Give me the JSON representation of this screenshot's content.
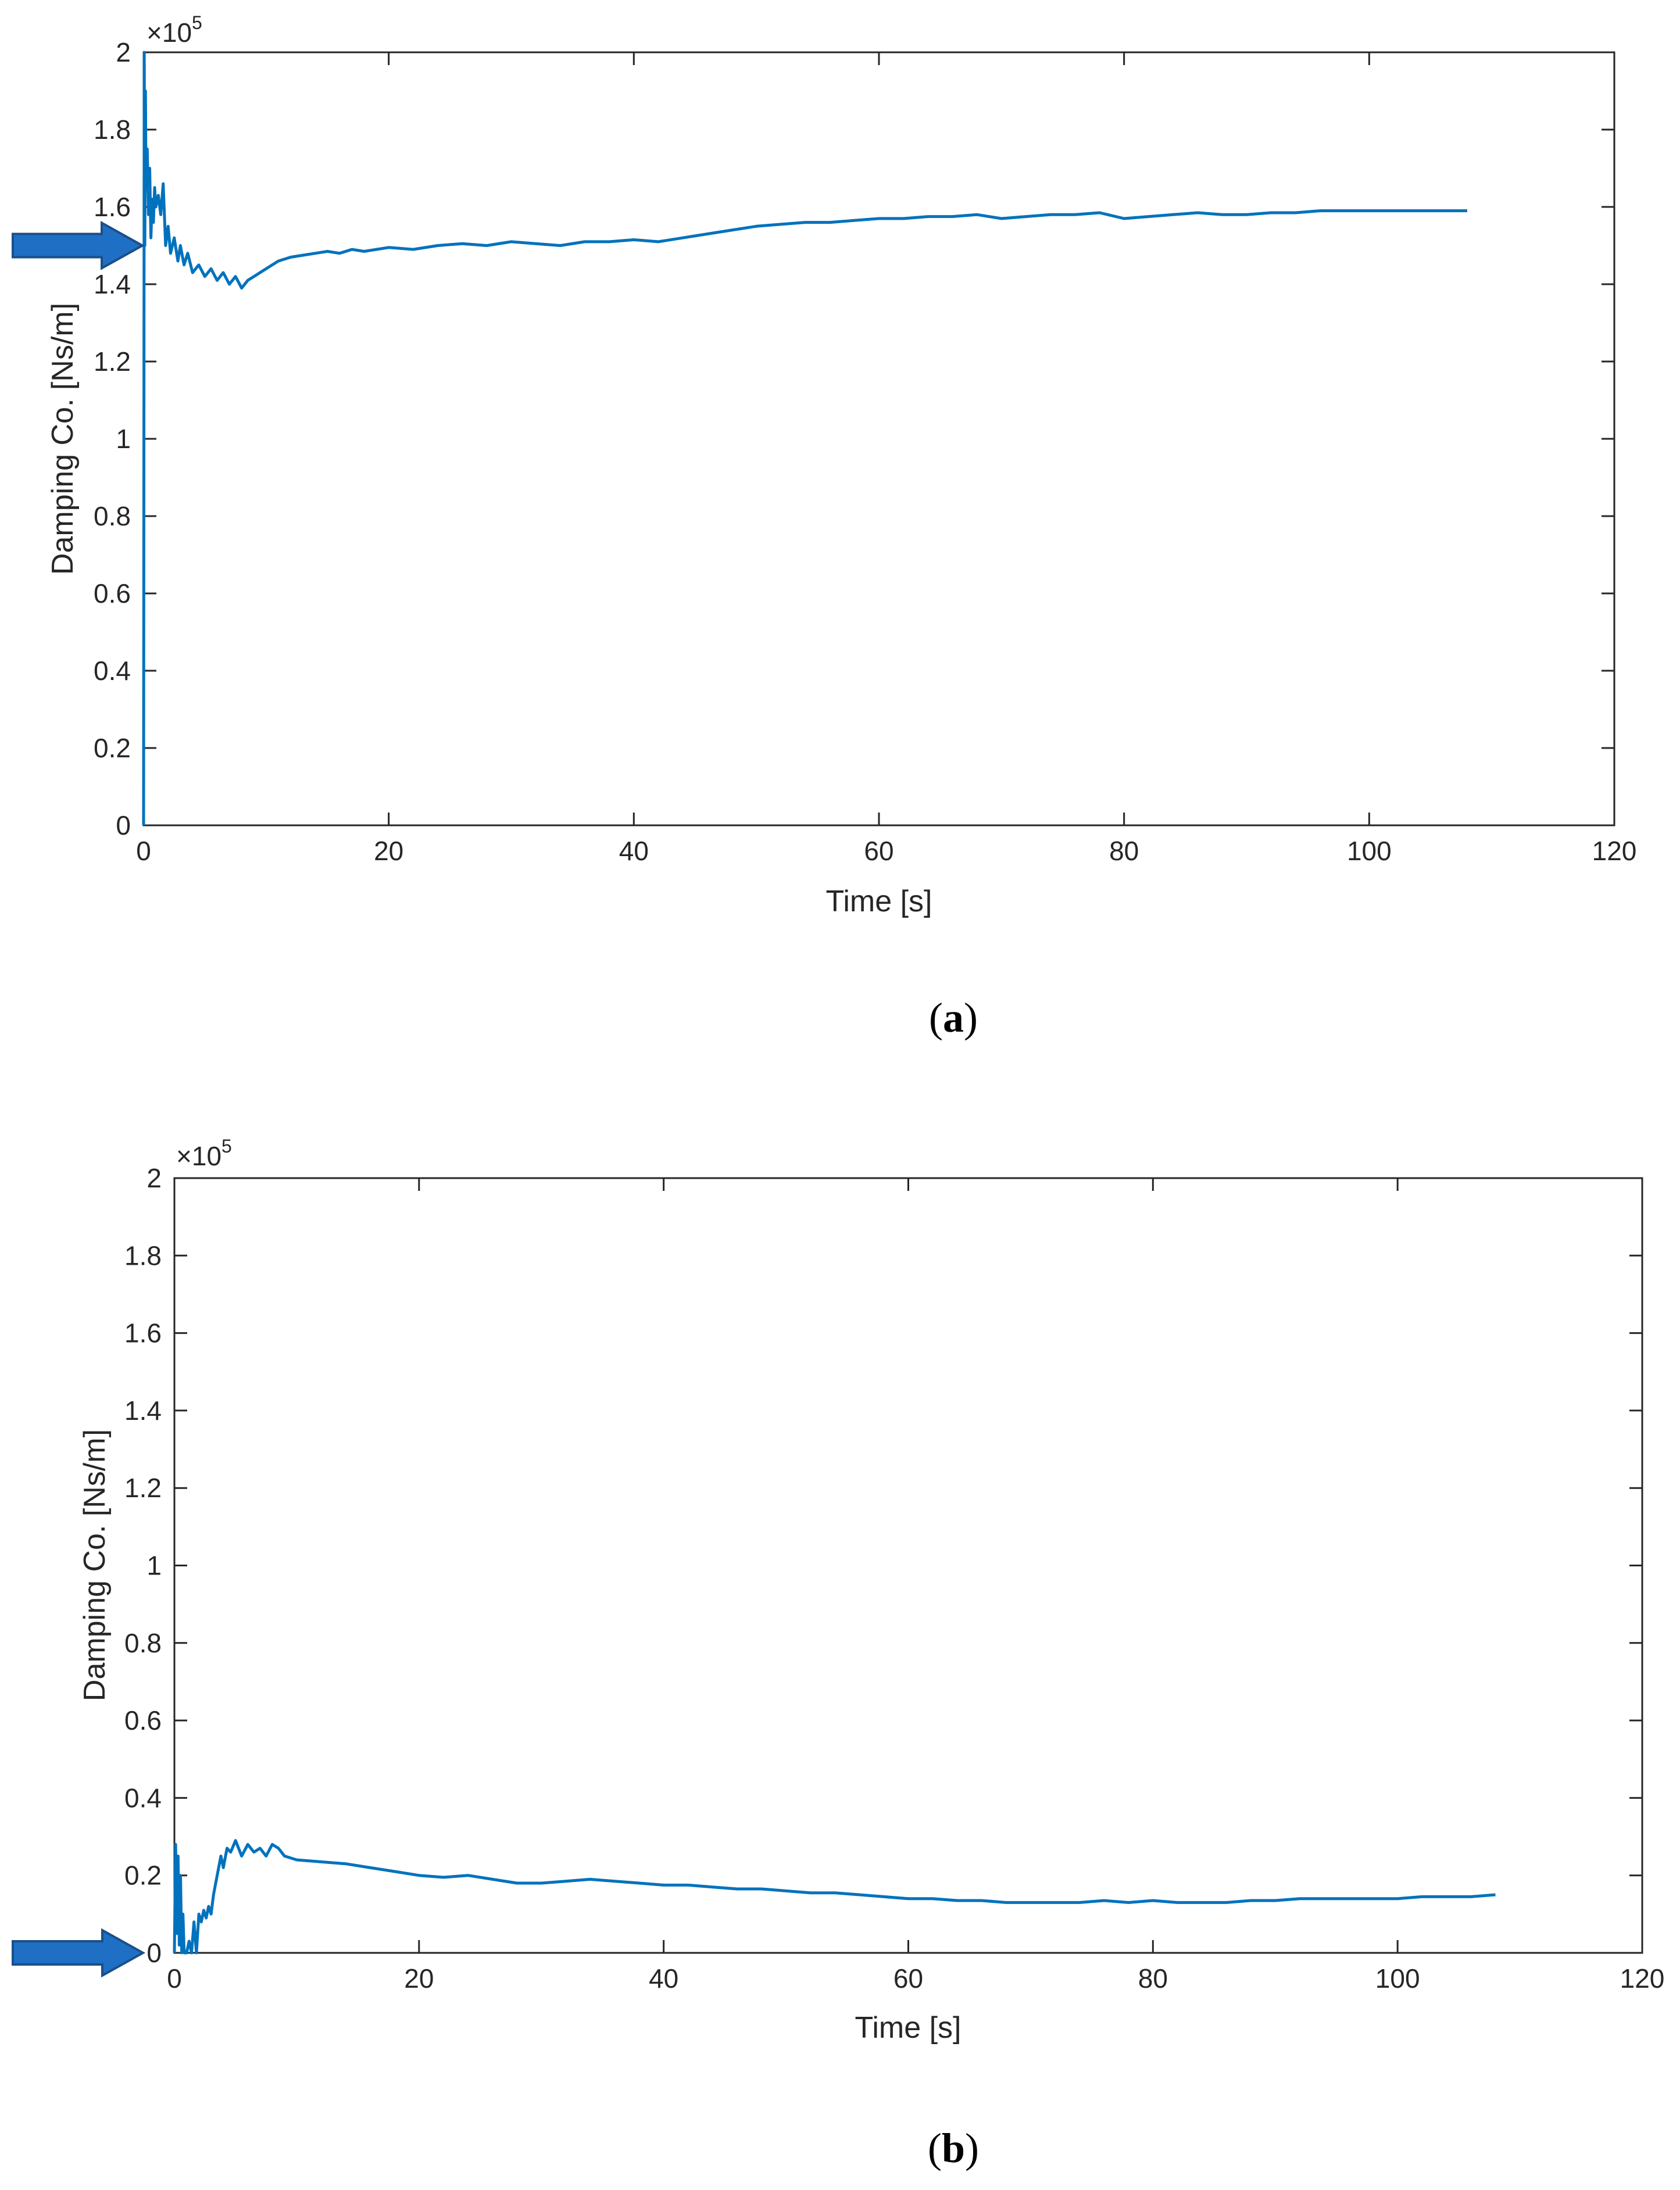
{
  "colors": {
    "line": "#0072BD",
    "axis": "#262626",
    "arrow_fill": "#1F6FC4",
    "arrow_edge": "#1A4F8A"
  },
  "chart_data": [
    {
      "type": "line",
      "caption": "(a)",
      "caption_letter": "a",
      "xlabel": "Time [s]",
      "ylabel": "Damping Co. [Ns/m]",
      "y_exponent_label": "×10",
      "y_exponent_power": "5",
      "xlim": [
        0,
        120
      ],
      "ylim": [
        0,
        200000
      ],
      "xticks": [
        0,
        20,
        40,
        60,
        80,
        100,
        120
      ],
      "xtick_labels": [
        "0",
        "20",
        "40",
        "60",
        "80",
        "100",
        "120"
      ],
      "yticks": [
        0,
        20000,
        40000,
        60000,
        80000,
        100000,
        120000,
        140000,
        160000,
        180000,
        200000
      ],
      "ytick_labels": [
        "0",
        "0.2",
        "0.4",
        "0.6",
        "0.8",
        "1",
        "1.2",
        "1.4",
        "1.6",
        "1.8",
        "2"
      ],
      "grid": false,
      "arrow_marker_y": 150000,
      "series": [
        {
          "x": [
            0,
            0.05,
            0.1,
            0.15,
            0.2,
            0.3,
            0.4,
            0.5,
            0.6,
            0.7,
            0.8,
            0.9,
            1.0,
            1.2,
            1.4,
            1.6,
            1.8,
            2.0,
            2.2,
            2.5,
            2.8,
            3.0,
            3.3,
            3.6,
            4.0,
            4.5,
            5.0,
            5.5,
            6.0,
            6.5,
            7.0,
            7.5,
            8.0,
            8.5,
            9.0,
            10,
            11,
            12,
            13,
            14,
            15,
            16,
            17,
            18,
            19,
            20,
            22,
            24,
            26,
            28,
            30,
            32,
            34,
            36,
            38,
            40,
            42,
            44,
            46,
            48,
            50,
            52,
            54,
            56,
            58,
            60,
            62,
            64,
            66,
            68,
            70,
            72,
            74,
            76,
            78,
            80,
            82,
            84,
            86,
            88,
            90,
            92,
            94,
            96,
            98,
            100,
            102,
            104,
            106,
            108
          ],
          "y": [
            0,
            200000,
            150000,
            190000,
            165000,
            175000,
            158000,
            170000,
            152000,
            162000,
            156000,
            165000,
            160000,
            163000,
            158000,
            166000,
            150000,
            155000,
            148000,
            152000,
            146000,
            150000,
            145000,
            148000,
            143000,
            145000,
            142000,
            144000,
            141000,
            143000,
            140000,
            142000,
            139000,
            141000,
            142000,
            144000,
            146000,
            147000,
            147500,
            148000,
            148500,
            148000,
            149000,
            148500,
            149000,
            149500,
            149000,
            150000,
            150500,
            150000,
            151000,
            150500,
            150000,
            151000,
            151000,
            151500,
            151000,
            152000,
            153000,
            154000,
            155000,
            155500,
            156000,
            156000,
            156500,
            157000,
            157000,
            157500,
            157500,
            158000,
            157000,
            157500,
            158000,
            158000,
            158500,
            157000,
            157500,
            158000,
            158500,
            158000,
            158000,
            158500,
            158500,
            159000,
            159000,
            159000,
            159000,
            159000,
            159000,
            159000
          ]
        }
      ]
    },
    {
      "type": "line",
      "caption": "(b)",
      "caption_letter": "b",
      "xlabel": "Time [s]",
      "ylabel": "Damping Co. [Ns/m]",
      "y_exponent_label": "×10",
      "y_exponent_power": "5",
      "xlim": [
        0,
        120
      ],
      "ylim": [
        0,
        200000
      ],
      "xticks": [
        0,
        20,
        40,
        60,
        80,
        100,
        120
      ],
      "xtick_labels": [
        "0",
        "20",
        "40",
        "60",
        "80",
        "100",
        "120"
      ],
      "yticks": [
        0,
        20000,
        40000,
        60000,
        80000,
        100000,
        120000,
        140000,
        160000,
        180000,
        200000
      ],
      "ytick_labels": [
        "0",
        "0.2",
        "0.4",
        "0.6",
        "0.8",
        "1",
        "1.2",
        "1.4",
        "1.6",
        "1.8",
        "2"
      ],
      "grid": false,
      "arrow_marker_y": 0,
      "series": [
        {
          "x": [
            0,
            0.05,
            0.1,
            0.2,
            0.3,
            0.4,
            0.5,
            0.6,
            0.7,
            0.8,
            1.0,
            1.2,
            1.4,
            1.6,
            1.8,
            2.0,
            2.2,
            2.4,
            2.6,
            2.8,
            3.0,
            3.2,
            3.5,
            3.8,
            4.0,
            4.3,
            4.6,
            5.0,
            5.5,
            6.0,
            6.5,
            7.0,
            7.5,
            8.0,
            8.5,
            9.0,
            10,
            12,
            14,
            16,
            18,
            20,
            22,
            24,
            26,
            28,
            30,
            32,
            34,
            36,
            38,
            40,
            42,
            44,
            46,
            48,
            50,
            52,
            54,
            56,
            58,
            60,
            62,
            64,
            66,
            68,
            70,
            72,
            74,
            76,
            78,
            80,
            82,
            84,
            86,
            88,
            90,
            92,
            94,
            96,
            98,
            100,
            102,
            104,
            106,
            108
          ],
          "y": [
            0,
            15000,
            28000,
            5000,
            25000,
            2000,
            20000,
            0,
            10000,
            0,
            0,
            3000,
            0,
            8000,
            0,
            10000,
            8000,
            11000,
            9000,
            12000,
            10000,
            15000,
            20000,
            25000,
            22000,
            27000,
            26000,
            29000,
            25000,
            28000,
            26000,
            27000,
            25000,
            28000,
            27000,
            25000,
            24000,
            23500,
            23000,
            22000,
            21000,
            20000,
            19500,
            20000,
            19000,
            18000,
            18000,
            18500,
            19000,
            18500,
            18000,
            17500,
            17500,
            17000,
            16500,
            16500,
            16000,
            15500,
            15500,
            15000,
            14500,
            14000,
            14000,
            13500,
            13500,
            13000,
            13000,
            13000,
            13000,
            13500,
            13000,
            13500,
            13000,
            13000,
            13000,
            13500,
            13500,
            14000,
            14000,
            14000,
            14000,
            14000,
            14500,
            14500,
            14500,
            15000
          ]
        }
      ]
    }
  ]
}
